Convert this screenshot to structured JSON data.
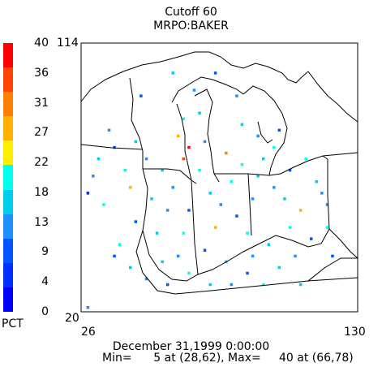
{
  "title": "Cutoff 60",
  "subtitle": "MRPO:BAKER",
  "colorbar": {
    "labels": [
      "40",
      "36",
      "31",
      "27",
      "22",
      "18",
      "13",
      "9",
      "4",
      "0"
    ],
    "unit": "PCT",
    "colors": [
      "#ff0000",
      "#ff4400",
      "#ff8000",
      "#ffb000",
      "#ffee00",
      "#00ffee",
      "#00ccee",
      "#1e90ff",
      "#0055ff",
      "#0030ff",
      "#0000ff"
    ]
  },
  "axes": {
    "y_top": "114",
    "y_bottom": "20",
    "x_left": "26",
    "x_right": "130"
  },
  "footer": {
    "date": "December 31,1999 0:00:00",
    "stats": "Min=      5 at (28,62), Max=     40 at (66,78)"
  },
  "chart_data": {
    "type": "heatmap",
    "x_range": [
      26,
      130
    ],
    "y_range": [
      20,
      114
    ],
    "value_range": [
      0,
      40
    ],
    "min": {
      "value": 5,
      "x": 28,
      "y": 62
    },
    "max": {
      "value": 40,
      "x": 66,
      "y": 78
    },
    "note_cells": [
      [
        28,
        62,
        5
      ],
      [
        66,
        78,
        40
      ],
      [
        64,
        74,
        36
      ],
      [
        36,
        84,
        13
      ],
      [
        48,
        96,
        9
      ],
      [
        62,
        82,
        27
      ],
      [
        70,
        90,
        18
      ],
      [
        80,
        76,
        31
      ],
      [
        86,
        72,
        22
      ],
      [
        92,
        68,
        18
      ],
      [
        98,
        64,
        13
      ],
      [
        104,
        70,
        9
      ],
      [
        110,
        74,
        22
      ],
      [
        114,
        66,
        18
      ],
      [
        118,
        58,
        13
      ],
      [
        104,
        50,
        22
      ],
      [
        96,
        44,
        18
      ],
      [
        90,
        40,
        13
      ],
      [
        80,
        38,
        18
      ],
      [
        72,
        42,
        9
      ],
      [
        64,
        48,
        22
      ],
      [
        58,
        56,
        13
      ],
      [
        52,
        60,
        18
      ],
      [
        46,
        52,
        9
      ],
      [
        40,
        44,
        22
      ],
      [
        44,
        36,
        18
      ],
      [
        50,
        32,
        13
      ],
      [
        58,
        30,
        9
      ],
      [
        66,
        34,
        22
      ],
      [
        74,
        30,
        18
      ],
      [
        82,
        30,
        13
      ],
      [
        88,
        34,
        9
      ],
      [
        94,
        30,
        22
      ],
      [
        100,
        36,
        18
      ],
      [
        106,
        40,
        13
      ],
      [
        112,
        46,
        9
      ],
      [
        118,
        50,
        22
      ],
      [
        74,
        62,
        18
      ],
      [
        78,
        58,
        13
      ],
      [
        84,
        54,
        9
      ],
      [
        56,
        70,
        18
      ],
      [
        50,
        74,
        13
      ],
      [
        42,
        70,
        22
      ],
      [
        38,
        78,
        9
      ],
      [
        32,
        74,
        18
      ],
      [
        30,
        68,
        13
      ],
      [
        34,
        58,
        22
      ],
      [
        86,
        86,
        18
      ],
      [
        92,
        82,
        13
      ],
      [
        98,
        78,
        22
      ],
      [
        100,
        84,
        9
      ],
      [
        68,
        98,
        13
      ],
      [
        60,
        104,
        18
      ],
      [
        76,
        104,
        9
      ],
      [
        84,
        96,
        13
      ],
      [
        108,
        56,
        27
      ],
      [
        70,
        70,
        22
      ],
      [
        60,
        64,
        13
      ],
      [
        54,
        48,
        18
      ],
      [
        62,
        40,
        13
      ],
      [
        88,
        48,
        22
      ],
      [
        76,
        50,
        27
      ],
      [
        102,
        60,
        18
      ],
      [
        116,
        62,
        13
      ],
      [
        120,
        40,
        9
      ],
      [
        108,
        30,
        18
      ],
      [
        28,
        22,
        13
      ],
      [
        38,
        40,
        9
      ],
      [
        44,
        64,
        27
      ],
      [
        46,
        80,
        18
      ],
      [
        64,
        88,
        22
      ],
      [
        72,
        80,
        13
      ],
      [
        94,
        74,
        18
      ],
      [
        90,
        60,
        13
      ],
      [
        82,
        66,
        22
      ],
      [
        66,
        56,
        9
      ],
      [
        56,
        38,
        18
      ]
    ]
  }
}
